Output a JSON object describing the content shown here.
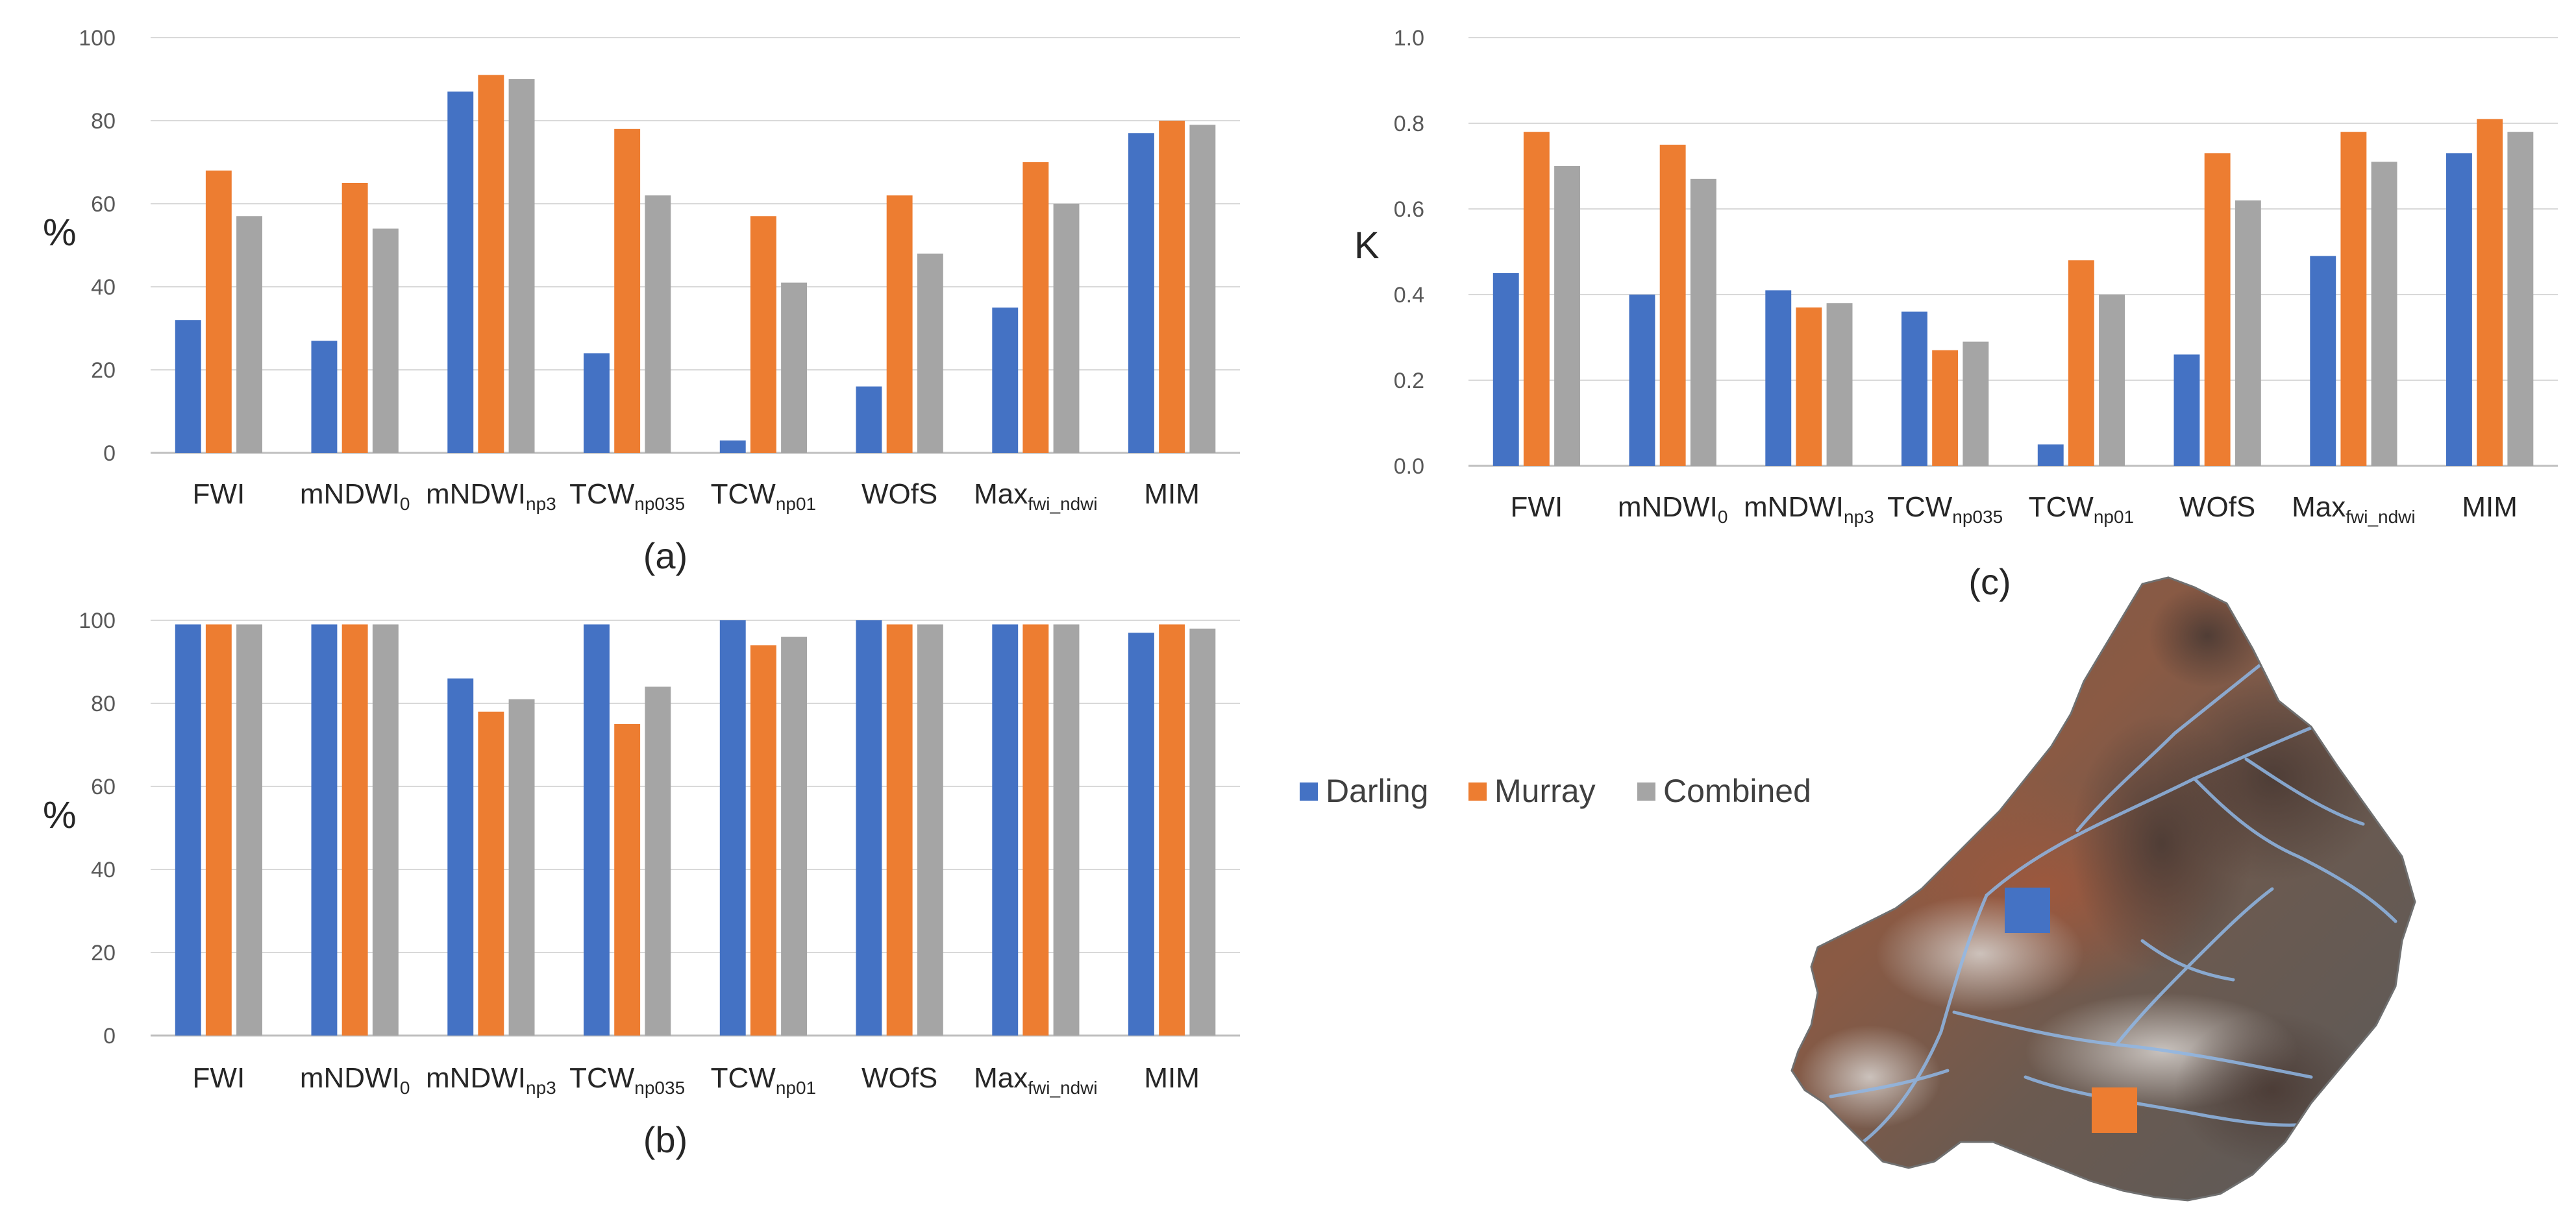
{
  "legend": [
    {
      "name": "Darling",
      "color": "#4472C4"
    },
    {
      "name": "Murray",
      "color": "#ED7D31"
    },
    {
      "name": "Combined",
      "color": "#A5A5A5"
    }
  ],
  "categories": [
    {
      "base": "FWI",
      "sub": ""
    },
    {
      "base": "mNDWI",
      "sub": "0"
    },
    {
      "base": "mNDWI",
      "sub": "np3"
    },
    {
      "base": "TCW",
      "sub": "np035"
    },
    {
      "base": "TCW",
      "sub": "np01"
    },
    {
      "base": "WOfS",
      "sub": ""
    },
    {
      "base": "Max",
      "sub": "fwi_ndwi"
    },
    {
      "base": "MIM",
      "sub": ""
    }
  ],
  "chart_data": [
    {
      "type": "bar",
      "panel_label": "(a)",
      "ylabel": "%",
      "ylim": [
        0,
        100
      ],
      "yticks": [
        "0",
        "20",
        "40",
        "60",
        "80",
        "100"
      ],
      "series": [
        {
          "name": "Darling",
          "values": [
            32,
            27,
            87,
            24,
            3,
            16,
            35,
            77
          ]
        },
        {
          "name": "Murray",
          "values": [
            68,
            65,
            91,
            78,
            57,
            62,
            70,
            80
          ]
        },
        {
          "name": "Combined",
          "values": [
            57,
            54,
            90,
            62,
            41,
            48,
            60,
            79
          ]
        }
      ]
    },
    {
      "type": "bar",
      "panel_label": "(b)",
      "ylabel": "%",
      "ylim": [
        0,
        100
      ],
      "yticks": [
        "0",
        "20",
        "40",
        "60",
        "80",
        "100"
      ],
      "series": [
        {
          "name": "Darling",
          "values": [
            99,
            99,
            86,
            99,
            100,
            100,
            99,
            97
          ]
        },
        {
          "name": "Murray",
          "values": [
            99,
            99,
            78,
            75,
            94,
            99,
            99,
            99
          ]
        },
        {
          "name": "Combined",
          "values": [
            99,
            99,
            81,
            84,
            96,
            99,
            99,
            98
          ]
        }
      ]
    },
    {
      "type": "bar",
      "panel_label": "(c)",
      "ylabel": "K",
      "ylim": [
        0,
        1.0
      ],
      "yticks": [
        "0.0",
        "0.2",
        "0.4",
        "0.6",
        "0.8",
        "1.0"
      ],
      "series": [
        {
          "name": "Darling",
          "values": [
            0.45,
            0.4,
            0.41,
            0.36,
            0.05,
            0.26,
            0.49,
            0.73
          ]
        },
        {
          "name": "Murray",
          "values": [
            0.78,
            0.75,
            0.37,
            0.27,
            0.48,
            0.73,
            0.78,
            0.81
          ]
        },
        {
          "name": "Combined",
          "values": [
            0.7,
            0.67,
            0.38,
            0.29,
            0.4,
            0.62,
            0.71,
            0.78
          ]
        }
      ]
    }
  ],
  "map": {
    "name": "Murray-Darling basin satellite map",
    "markers": [
      {
        "name": "Darling",
        "color": "#4472C4"
      },
      {
        "name": "Murray",
        "color": "#ED7D31"
      }
    ]
  }
}
